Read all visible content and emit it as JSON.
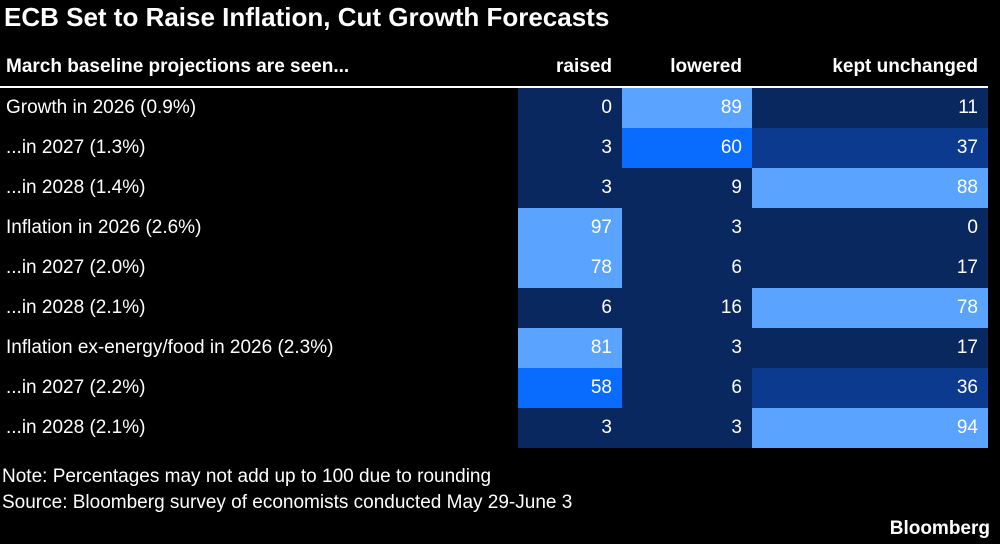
{
  "header": {
    "title": "ECB Set to Raise Inflation, Cut Growth Forecasts"
  },
  "table": {
    "columns": [
      "March baseline projections are seen...",
      "raised",
      "lowered",
      "kept unchanged"
    ],
    "rows": [
      {
        "label": "Growth in 2026 (0.9%)",
        "values": [
          0,
          89,
          11
        ]
      },
      {
        "label": "...in 2027 (1.3%)",
        "values": [
          3,
          60,
          37
        ]
      },
      {
        "label": "...in 2028 (1.4%)",
        "values": [
          3,
          9,
          88
        ]
      },
      {
        "label": "Inflation in 2026 (2.6%)",
        "values": [
          97,
          3,
          0
        ]
      },
      {
        "label": "...in 2027 (2.0%)",
        "values": [
          78,
          6,
          17
        ]
      },
      {
        "label": "...in 2028 (2.1%)",
        "values": [
          6,
          16,
          78
        ]
      },
      {
        "label": "Inflation ex-energy/food in 2026 (2.3%)",
        "values": [
          81,
          3,
          17
        ]
      },
      {
        "label": "...in 2027 (2.2%)",
        "values": [
          58,
          6,
          36
        ]
      },
      {
        "label": "...in 2028 (2.1%)",
        "values": [
          3,
          3,
          94
        ]
      }
    ]
  },
  "footer": {
    "note": "Note: Percentages may not add up to 100 due to rounding",
    "source": "Source: Bloomberg survey of economists conducted May 29-June 3",
    "brand": "Bloomberg"
  }
}
